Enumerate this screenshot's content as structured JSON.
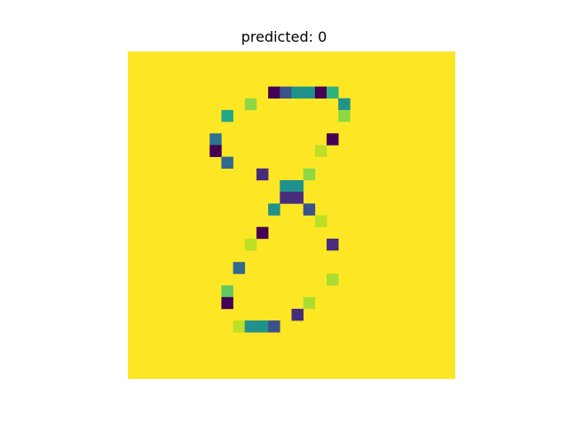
{
  "chart_data": {
    "type": "heatmap",
    "title": "predicted: 0",
    "rows": 28,
    "cols": 28,
    "axes_visible": false,
    "colormap": "viridis",
    "background_color": "#fde725",
    "cells": [
      {
        "row": 3,
        "col": 12,
        "color": "#440154"
      },
      {
        "row": 3,
        "col": 13,
        "color": "#3b528b"
      },
      {
        "row": 3,
        "col": 14,
        "color": "#21918c"
      },
      {
        "row": 3,
        "col": 15,
        "color": "#21918c"
      },
      {
        "row": 3,
        "col": 16,
        "color": "#440154"
      },
      {
        "row": 3,
        "col": 17,
        "color": "#2db27d"
      },
      {
        "row": 4,
        "col": 10,
        "color": "#8fd744"
      },
      {
        "row": 4,
        "col": 18,
        "color": "#21918c"
      },
      {
        "row": 5,
        "col": 8,
        "color": "#22a884"
      },
      {
        "row": 5,
        "col": 18,
        "color": "#8fd744"
      },
      {
        "row": 7,
        "col": 7,
        "color": "#2c728e"
      },
      {
        "row": 7,
        "col": 17,
        "color": "#440154"
      },
      {
        "row": 8,
        "col": 7,
        "color": "#440154"
      },
      {
        "row": 8,
        "col": 16,
        "color": "#bddf26"
      },
      {
        "row": 9,
        "col": 8,
        "color": "#31688e"
      },
      {
        "row": 10,
        "col": 11,
        "color": "#472d7b"
      },
      {
        "row": 10,
        "col": 15,
        "color": "#8fd744"
      },
      {
        "row": 11,
        "col": 13,
        "color": "#21918c"
      },
      {
        "row": 11,
        "col": 14,
        "color": "#21918c"
      },
      {
        "row": 12,
        "col": 13,
        "color": "#472d7b"
      },
      {
        "row": 12,
        "col": 14,
        "color": "#472d7b"
      },
      {
        "row": 13,
        "col": 12,
        "color": "#21918c"
      },
      {
        "row": 13,
        "col": 15,
        "color": "#3b528b"
      },
      {
        "row": 14,
        "col": 16,
        "color": "#bddf26"
      },
      {
        "row": 15,
        "col": 11,
        "color": "#440154"
      },
      {
        "row": 16,
        "col": 10,
        "color": "#bddf26"
      },
      {
        "row": 16,
        "col": 17,
        "color": "#472d7b"
      },
      {
        "row": 18,
        "col": 9,
        "color": "#31688e"
      },
      {
        "row": 19,
        "col": 17,
        "color": "#addc30"
      },
      {
        "row": 20,
        "col": 8,
        "color": "#5ec962"
      },
      {
        "row": 21,
        "col": 8,
        "color": "#440154"
      },
      {
        "row": 21,
        "col": 15,
        "color": "#addc30"
      },
      {
        "row": 22,
        "col": 14,
        "color": "#472d7b"
      },
      {
        "row": 23,
        "col": 9,
        "color": "#bddf26"
      },
      {
        "row": 23,
        "col": 10,
        "color": "#21918c"
      },
      {
        "row": 23,
        "col": 11,
        "color": "#21918c"
      },
      {
        "row": 23,
        "col": 12,
        "color": "#3b528b"
      }
    ]
  }
}
